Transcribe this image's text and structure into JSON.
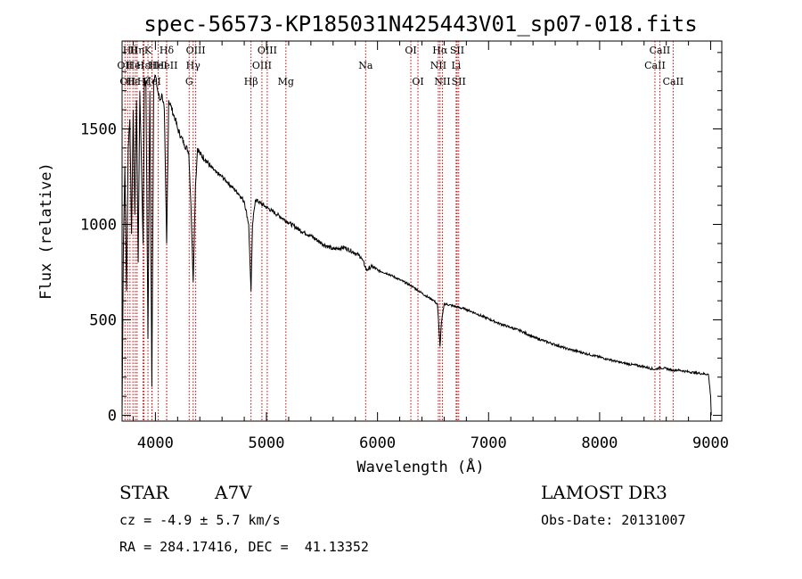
{
  "chart_data": {
    "type": "line",
    "title": "spec-56573-KP185031N425443V01_sp07-018.fits",
    "xlabel": "Wavelength (Å)",
    "ylabel": "Flux (relative)",
    "xlim": [
      3700,
      9100
    ],
    "ylim": [
      -30,
      1960
    ],
    "xticks": [
      4000,
      5000,
      6000,
      7000,
      8000,
      9000
    ],
    "yticks": [
      0,
      500,
      1000,
      1500
    ],
    "grid": false,
    "series": [
      {
        "name": "flux",
        "x": [
          3700,
          3712,
          3725,
          3740,
          3755,
          3770,
          3785,
          3800,
          3815,
          3830,
          3845,
          3860,
          3875,
          3889,
          3900,
          3915,
          3933,
          3950,
          3968,
          3985,
          4000,
          4020,
          4040,
          4060,
          4080,
          4101,
          4120,
          4140,
          4160,
          4180,
          4200,
          4230,
          4260,
          4300,
          4320,
          4340,
          4360,
          4380,
          4400,
          4450,
          4500,
          4550,
          4600,
          4650,
          4700,
          4750,
          4800,
          4840,
          4861,
          4875,
          4900,
          4950,
          5000,
          5050,
          5100,
          5200,
          5300,
          5400,
          5500,
          5600,
          5700,
          5800,
          5850,
          5890,
          5900,
          5950,
          6000,
          6100,
          6200,
          6300,
          6400,
          6450,
          6500,
          6540,
          6563,
          6575,
          6600,
          6700,
          6800,
          6900,
          7000,
          7100,
          7200,
          7300,
          7400,
          7500,
          7600,
          7700,
          7800,
          7900,
          8000,
          8100,
          8200,
          8300,
          8400,
          8498,
          8542,
          8600,
          8662,
          8700,
          8800,
          8900,
          8980,
          9000,
          9005
        ],
        "y": [
          0,
          900,
          1300,
          650,
          1400,
          1550,
          950,
          1600,
          1050,
          1650,
          800,
          1700,
          1300,
          900,
          1720,
          1750,
          400,
          1700,
          150,
          1760,
          1780,
          1700,
          1650,
          1680,
          1600,
          900,
          1650,
          1620,
          1580,
          1550,
          1500,
          1460,
          1420,
          1380,
          1100,
          700,
          1200,
          1400,
          1370,
          1340,
          1300,
          1270,
          1250,
          1220,
          1190,
          1160,
          1120,
          1000,
          650,
          1000,
          1130,
          1110,
          1090,
          1070,
          1050,
          1010,
          970,
          940,
          900,
          870,
          880,
          850,
          830,
          780,
          760,
          780,
          760,
          740,
          710,
          680,
          640,
          620,
          605,
          580,
          360,
          480,
          585,
          570,
          555,
          530,
          505,
          480,
          460,
          440,
          410,
          390,
          370,
          350,
          335,
          320,
          305,
          290,
          275,
          265,
          255,
          240,
          250,
          245,
          235,
          238,
          228,
          220,
          215,
          100,
          0
        ]
      }
    ],
    "lines": [
      {
        "wave": 3726,
        "label": "OII",
        "row": 2
      },
      {
        "wave": 3750,
        "label": "OII",
        "row": 3
      },
      {
        "wave": 3771,
        "label": "Hθ",
        "row": 1
      },
      {
        "wave": 3798,
        "label": "Hε",
        "row": 3
      },
      {
        "wave": 3819,
        "label": "HeI",
        "row": 2
      },
      {
        "wave": 3835,
        "label": "Hη",
        "row": 1
      },
      {
        "wave": 3889,
        "label": "Hε",
        "row": 2
      },
      {
        "wave": 3898,
        "label": "Hζ",
        "row": 3
      },
      {
        "wave": 3933,
        "label": "K",
        "row": 1
      },
      {
        "wave": 3968,
        "label": "H",
        "row": 2
      },
      {
        "wave": 3970,
        "label": "HeI",
        "row": 3
      },
      {
        "wave": 4026,
        "label": "HeI",
        "row": 2
      },
      {
        "wave": 4101,
        "label": "Hδ",
        "row": 1
      },
      {
        "wave": 4102,
        "label": "HeII",
        "row": 2
      },
      {
        "wave": 4304,
        "label": "G",
        "row": 3
      },
      {
        "wave": 4340,
        "label": "Hγ",
        "row": 2
      },
      {
        "wave": 4363,
        "label": "OIII",
        "row": 1
      },
      {
        "wave": 4861,
        "label": "Hβ",
        "row": 3
      },
      {
        "wave": 4959,
        "label": "OIII",
        "row": 2
      },
      {
        "wave": 5007,
        "label": "OIII",
        "row": 1
      },
      {
        "wave": 5175,
        "label": "Mg",
        "row": 3
      },
      {
        "wave": 5893,
        "label": "Na",
        "row": 2
      },
      {
        "wave": 6300,
        "label": "OI",
        "row": 1
      },
      {
        "wave": 6364,
        "label": "OI",
        "row": 3
      },
      {
        "wave": 6548,
        "label": "NII",
        "row": 2
      },
      {
        "wave": 6563,
        "label": "Hα",
        "row": 1
      },
      {
        "wave": 6584,
        "label": "NII",
        "row": 3
      },
      {
        "wave": 6708,
        "label": "Li",
        "row": 2
      },
      {
        "wave": 6717,
        "label": "SII",
        "row": 1
      },
      {
        "wave": 6731,
        "label": "SII",
        "row": 3
      },
      {
        "wave": 8498,
        "label": "CaII",
        "row": 2
      },
      {
        "wave": 8542,
        "label": "CaII",
        "row": 1
      },
      {
        "wave": 8662,
        "label": "CaII",
        "row": 3
      }
    ],
    "line_color": "#cc0000",
    "curve_color": "#000000"
  },
  "info": {
    "class": "STAR",
    "subclass": "A7V",
    "survey": "LAMOST DR3",
    "cz": "cz = -4.9 ± 5.7 km/s",
    "obs_date": "Obs-Date: 20131007",
    "coords": "RA = 284.17416, DEC =  41.13352"
  }
}
